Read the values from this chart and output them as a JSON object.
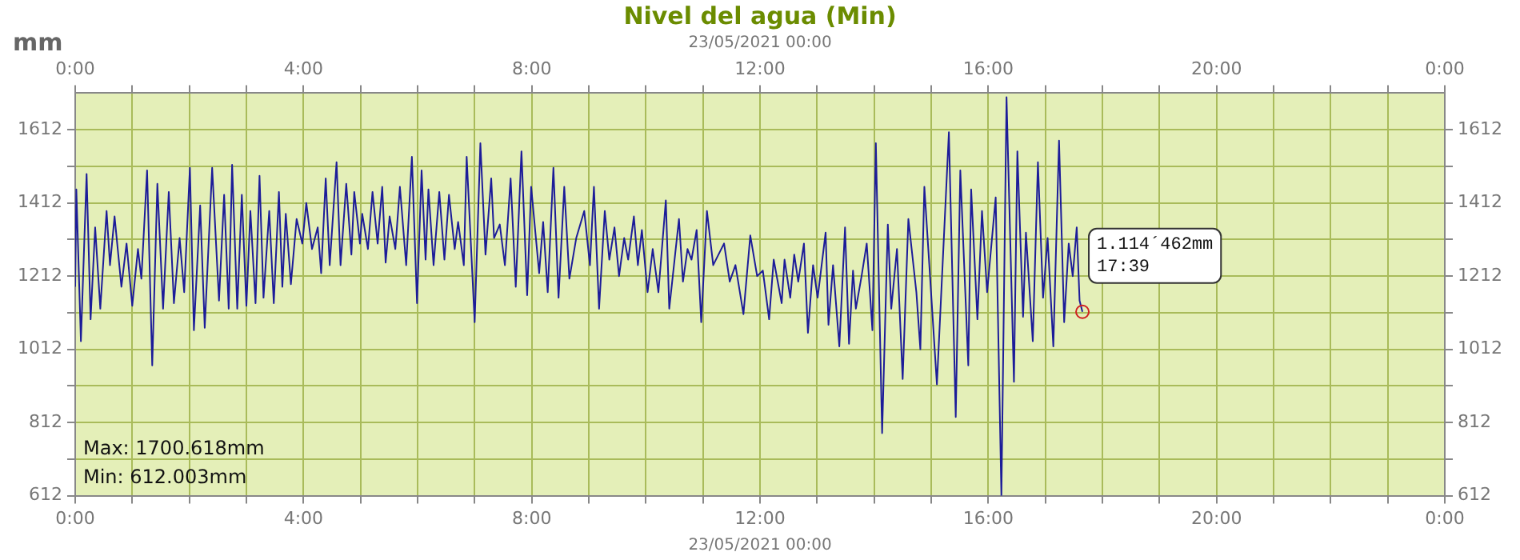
{
  "chart_data": {
    "type": "line",
    "title": "Nivel del agua (Min)",
    "xlabel": "23/05/2021 00:00",
    "x2label": "23/05/2021 00:00",
    "ylabel": "mm",
    "color": "#1c1c99",
    "grid": true,
    "legend": false,
    "x": [
      0,
      0.02,
      0.1,
      0.2,
      0.27,
      0.35,
      0.44,
      0.55,
      0.61,
      0.69,
      0.81,
      0.9,
      1.0,
      1.1,
      1.16,
      1.26,
      1.35,
      1.44,
      1.54,
      1.64,
      1.73,
      1.83,
      1.91,
      2.01,
      2.08,
      2.19,
      2.27,
      2.4,
      2.52,
      2.61,
      2.69,
      2.75,
      2.84,
      2.92,
      3.0,
      3.07,
      3.16,
      3.23,
      3.3,
      3.4,
      3.48,
      3.57,
      3.63,
      3.69,
      3.78,
      3.88,
      3.98,
      4.05,
      4.15,
      4.25,
      4.31,
      4.39,
      4.46,
      4.58,
      4.65,
      4.75,
      4.84,
      4.89,
      4.99,
      5.03,
      5.13,
      5.21,
      5.3,
      5.38,
      5.44,
      5.51,
      5.61,
      5.69,
      5.8,
      5.9,
      5.99,
      6.07,
      6.14,
      6.19,
      6.28,
      6.38,
      6.47,
      6.55,
      6.65,
      6.71,
      6.81,
      6.86,
      7.0,
      7.1,
      7.19,
      7.29,
      7.34,
      7.44,
      7.53,
      7.63,
      7.72,
      7.82,
      7.92,
      7.99,
      8.13,
      8.2,
      8.28,
      8.38,
      8.47,
      8.57,
      8.66,
      8.78,
      8.92,
      9.02,
      9.09,
      9.18,
      9.28,
      9.36,
      9.45,
      9.53,
      9.62,
      9.69,
      9.79,
      9.86,
      9.93,
      10.03,
      10.12,
      10.22,
      10.35,
      10.41,
      10.58,
      10.65,
      10.73,
      10.8,
      10.89,
      10.97,
      11.07,
      11.18,
      11.37,
      11.47,
      11.57,
      11.71,
      11.83,
      11.95,
      12.05,
      12.16,
      12.24,
      12.38,
      12.43,
      12.53,
      12.6,
      12.67,
      12.77,
      12.84,
      12.93,
      13.01,
      13.15,
      13.2,
      13.28,
      13.39,
      13.49,
      13.56,
      13.63,
      13.68,
      13.78,
      13.87,
      13.97,
      14.03,
      14.14,
      14.24,
      14.3,
      14.4,
      14.5,
      14.6,
      14.74,
      14.81,
      14.88,
      15.1,
      15.31,
      15.43,
      15.51,
      15.65,
      15.7,
      15.81,
      15.89,
      15.98,
      16.13,
      16.23,
      16.32,
      16.45,
      16.51,
      16.61,
      16.66,
      16.78,
      16.87,
      16.96,
      17.04,
      17.14,
      17.24,
      17.33,
      17.41,
      17.48,
      17.55,
      17.6,
      17.65
    ],
    "values": [
      1183,
      1449,
      1034,
      1491,
      1094,
      1345,
      1123,
      1390,
      1242,
      1375,
      1183,
      1301,
      1131,
      1286,
      1205,
      1501,
      968,
      1464,
      1123,
      1442,
      1138,
      1316,
      1168,
      1508,
      1064,
      1405,
      1071,
      1508,
      1145,
      1434,
      1123,
      1516,
      1123,
      1434,
      1131,
      1390,
      1138,
      1486,
      1153,
      1390,
      1138,
      1442,
      1183,
      1382,
      1190,
      1368,
      1301,
      1412,
      1286,
      1345,
      1220,
      1479,
      1242,
      1523,
      1242,
      1464,
      1271,
      1442,
      1301,
      1382,
      1286,
      1442,
      1301,
      1456,
      1249,
      1375,
      1286,
      1456,
      1242,
      1538,
      1138,
      1501,
      1257,
      1449,
      1242,
      1442,
      1257,
      1434,
      1286,
      1360,
      1242,
      1538,
      1086,
      1575,
      1271,
      1479,
      1316,
      1353,
      1242,
      1479,
      1183,
      1553,
      1160,
      1456,
      1220,
      1360,
      1168,
      1508,
      1153,
      1456,
      1205,
      1316,
      1390,
      1242,
      1456,
      1123,
      1390,
      1257,
      1345,
      1212,
      1316,
      1257,
      1375,
      1242,
      1338,
      1168,
      1286,
      1168,
      1419,
      1123,
      1368,
      1197,
      1286,
      1257,
      1338,
      1086,
      1390,
      1242,
      1301,
      1197,
      1242,
      1108,
      1323,
      1212,
      1227,
      1094,
      1257,
      1138,
      1257,
      1153,
      1271,
      1197,
      1301,
      1057,
      1242,
      1153,
      1331,
      1079,
      1242,
      1020,
      1345,
      1027,
      1227,
      1123,
      1212,
      1301,
      1064,
      1575,
      783,
      1353,
      1123,
      1286,
      931,
      1368,
      1168,
      1012,
      1456,
      916,
      1605,
      827,
      1501,
      968,
      1449,
      1094,
      1390,
      1168,
      1427,
      612,
      1701,
      923,
      1553,
      1101,
      1331,
      1034,
      1523,
      1153,
      1316,
      1020,
      1582,
      1086,
      1301,
      1212,
      1345,
      1145,
      1114.462
    ],
    "xlim": [
      0,
      24
    ],
    "xticks": [
      {
        "value": 0,
        "label": "0:00"
      },
      {
        "value": 1,
        "label": null
      },
      {
        "value": 2,
        "label": null
      },
      {
        "value": 3,
        "label": null
      },
      {
        "value": 4,
        "label": "4:00"
      },
      {
        "value": 5,
        "label": null
      },
      {
        "value": 6,
        "label": null
      },
      {
        "value": 7,
        "label": null
      },
      {
        "value": 8,
        "label": "8:00"
      },
      {
        "value": 9,
        "label": null
      },
      {
        "value": 10,
        "label": null
      },
      {
        "value": 11,
        "label": null
      },
      {
        "value": 12,
        "label": "12:00"
      },
      {
        "value": 13,
        "label": null
      },
      {
        "value": 14,
        "label": null
      },
      {
        "value": 15,
        "label": null
      },
      {
        "value": 16,
        "label": "16:00"
      },
      {
        "value": 17,
        "label": null
      },
      {
        "value": 18,
        "label": null
      },
      {
        "value": 19,
        "label": null
      },
      {
        "value": 20,
        "label": "20:00"
      },
      {
        "value": 21,
        "label": null
      },
      {
        "value": 22,
        "label": null
      },
      {
        "value": 23,
        "label": null
      },
      {
        "value": 24,
        "label": "0:00"
      }
    ],
    "x2lim": [
      0,
      24
    ],
    "x2ticks": [
      {
        "value": 0,
        "label": "0:00"
      },
      {
        "value": 1,
        "label": null
      },
      {
        "value": 2,
        "label": null
      },
      {
        "value": 3,
        "label": null
      },
      {
        "value": 4,
        "label": "4:00"
      },
      {
        "value": 5,
        "label": null
      },
      {
        "value": 6,
        "label": null
      },
      {
        "value": 7,
        "label": null
      },
      {
        "value": 8,
        "label": "8:00"
      },
      {
        "value": 9,
        "label": null
      },
      {
        "value": 10,
        "label": null
      },
      {
        "value": 11,
        "label": null
      },
      {
        "value": 12,
        "label": "12:00"
      },
      {
        "value": 13,
        "label": null
      },
      {
        "value": 14,
        "label": null
      },
      {
        "value": 15,
        "label": null
      },
      {
        "value": 16,
        "label": "16:00"
      },
      {
        "value": 17,
        "label": null
      },
      {
        "value": 18,
        "label": null
      },
      {
        "value": 19,
        "label": null
      },
      {
        "value": 20,
        "label": "20:00"
      },
      {
        "value": 21,
        "label": null
      },
      {
        "value": 22,
        "label": null
      },
      {
        "value": 23,
        "label": null
      },
      {
        "value": 24,
        "label": "0:00"
      }
    ],
    "ylim": [
      612,
      1712
    ],
    "yticks": [
      612,
      {
        "value": 712,
        "label": null
      },
      812,
      {
        "value": 912,
        "label": null
      },
      1012,
      {
        "value": 1112,
        "label": null
      },
      1212,
      {
        "value": 1312,
        "label": null
      },
      1412,
      {
        "value": 1512,
        "label": null
      },
      1612
    ],
    "y2lim": [
      612,
      1712
    ],
    "y2ticks": [
      612,
      {
        "value": 712,
        "label": null
      },
      812,
      {
        "value": 912,
        "label": null
      },
      1012,
      {
        "value": 1112,
        "label": null
      },
      1212,
      {
        "value": 1312,
        "label": null
      },
      1412,
      {
        "value": 1512,
        "label": null
      },
      1612
    ],
    "annotations": [
      "Max: 1700.618mm",
      "Min: 612.003mm",
      {
        "text": "1.114´462mm\n17:39",
        "x": 17.65,
        "y": 1114.462
      }
    ]
  }
}
